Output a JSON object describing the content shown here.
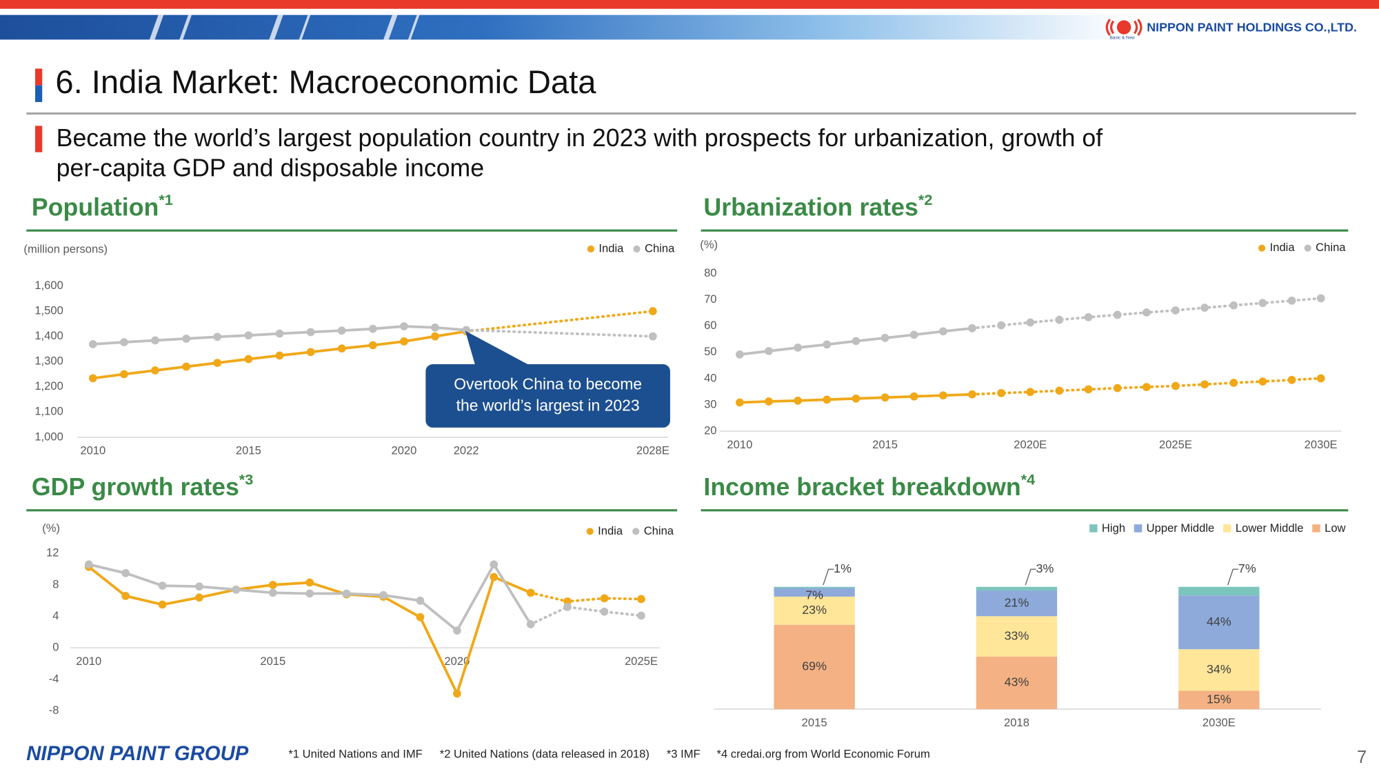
{
  "header": {
    "logo": "NIPPON PAINT HOLDINGS CO.,LTD.",
    "tagline": "Basic & New"
  },
  "title": "6. India Market: Macroeconomic Data",
  "subtitle": [
    "Became the world’s largest population country in 2023 with prospects for urbanization, growth of",
    "per-capita GDP and disposable income"
  ],
  "chart_data": [
    {
      "type": "line",
      "title": "Population",
      "note_ref": "*1",
      "unit": "(million persons)",
      "x": [
        2010,
        2011,
        2012,
        2013,
        2014,
        2015,
        2016,
        2017,
        2018,
        2019,
        2020,
        2021,
        2022,
        2028
      ],
      "xlim": [
        2009.5,
        2028.5
      ],
      "xticks": [
        2010,
        2015,
        2020,
        2022,
        {
          "value": 2028,
          "label": "2028E"
        }
      ],
      "ylim": [
        1000,
        1600
      ],
      "yticks": [
        {
          "value": 1000,
          "label": "1,000"
        },
        {
          "value": 1100,
          "label": "1,100"
        },
        {
          "value": 1200,
          "label": "1,200"
        },
        {
          "value": 1300,
          "label": "1,300"
        },
        {
          "value": 1400,
          "label": "1,400"
        },
        {
          "value": 1500,
          "label": "1,500"
        },
        {
          "value": 1600,
          "label": "1,600"
        }
      ],
      "grid": false,
      "legend": "top-right",
      "dashed_after": 2022,
      "series": [
        {
          "name": "India",
          "color": "#f0a818",
          "values": [
            1234,
            1250,
            1265,
            1280,
            1295,
            1310,
            1324,
            1338,
            1352,
            1365,
            1380,
            1400,
            1420,
            1500
          ]
        },
        {
          "name": "China",
          "color": "#bfbfbf",
          "values": [
            1369,
            1377,
            1384,
            1391,
            1398,
            1404,
            1411,
            1417,
            1423,
            1430,
            1440,
            1435,
            1425,
            1400
          ]
        }
      ],
      "annotation": [
        "Overtook China to become",
        "the world’s largest in 2023"
      ]
    },
    {
      "type": "line",
      "title": "Urbanization rates",
      "note_ref": "*2",
      "unit": "(%)",
      "x": [
        2010,
        2011,
        2012,
        2013,
        2014,
        2015,
        2016,
        2017,
        2018,
        2019,
        2020,
        2021,
        2022,
        2023,
        2024,
        2025,
        2026,
        2027,
        2028,
        2029,
        2030
      ],
      "xlim": [
        2009.3,
        2030.7
      ],
      "xticks": [
        2010,
        2015,
        {
          "value": 2020,
          "label": "2020E"
        },
        {
          "value": 2025,
          "label": "2025E"
        },
        {
          "value": 2030,
          "label": "2030E"
        }
      ],
      "ylim": [
        20,
        80
      ],
      "yticks": [
        20,
        30,
        40,
        50,
        60,
        70,
        80
      ],
      "grid": false,
      "legend": "top-right",
      "dashed_after": 2018,
      "series": [
        {
          "name": "India",
          "color": "#f0a818",
          "values": [
            30.9,
            31.3,
            31.6,
            32.0,
            32.4,
            32.8,
            33.2,
            33.6,
            34.0,
            34.5,
            34.9,
            35.4,
            35.9,
            36.4,
            36.8,
            37.2,
            37.8,
            38.4,
            38.9,
            39.5,
            40.1
          ]
        },
        {
          "name": "China",
          "color": "#bfbfbf",
          "values": [
            49.2,
            50.5,
            51.8,
            53.0,
            54.3,
            55.5,
            56.7,
            58.0,
            59.2,
            60.3,
            61.4,
            62.4,
            63.4,
            64.3,
            65.2,
            66.0,
            67.0,
            67.9,
            68.8,
            69.7,
            70.6
          ]
        }
      ]
    },
    {
      "type": "line",
      "title": "GDP growth rates",
      "note_ref": "*3",
      "unit": "(%)",
      "x": [
        2010,
        2011,
        2012,
        2013,
        2014,
        2015,
        2016,
        2017,
        2018,
        2019,
        2020,
        2021,
        2022,
        2023,
        2024,
        2025
      ],
      "xlim": [
        2009.5,
        2025.5
      ],
      "xticks": [
        2010,
        2015,
        2020,
        {
          "value": 2025,
          "label": "2025E"
        }
      ],
      "ylim": [
        -8,
        12
      ],
      "yticks": [
        -8,
        -4,
        0,
        4,
        8,
        12
      ],
      "grid": false,
      "legend": "top-right",
      "dashed_after": 2022,
      "series": [
        {
          "name": "India",
          "color": "#f0a818",
          "values": [
            10.3,
            6.6,
            5.5,
            6.4,
            7.4,
            8.0,
            8.3,
            6.8,
            6.5,
            3.9,
            -5.8,
            9.0,
            7.0,
            5.9,
            6.3,
            6.2
          ]
        },
        {
          "name": "China",
          "color": "#bfbfbf",
          "values": [
            10.6,
            9.5,
            7.9,
            7.8,
            7.4,
            7.0,
            6.9,
            6.9,
            6.7,
            6.0,
            2.2,
            10.6,
            3.0,
            5.2,
            4.6,
            4.1
          ]
        }
      ]
    },
    {
      "type": "bar",
      "stacked": true,
      "title": "Income bracket breakdown",
      "note_ref": "*4",
      "categories": [
        "2015",
        "2018",
        "2030E"
      ],
      "ylim": [
        0,
        100
      ],
      "legend": "top-right",
      "series": [
        {
          "name": "High",
          "color": "#7cc5bc",
          "values": [
            1,
            3,
            7
          ],
          "value_labels": [
            "1%",
            "3%",
            "7%"
          ]
        },
        {
          "name": "Upper Middle",
          "color": "#8eaadb",
          "values": [
            7,
            21,
            44
          ],
          "value_labels": [
            "7%",
            "21%",
            "44%"
          ]
        },
        {
          "name": "Lower Middle",
          "color": "#ffe699",
          "values": [
            23,
            33,
            34
          ],
          "value_labels": [
            "23%",
            "33%",
            "34%"
          ]
        },
        {
          "name": "Low",
          "color": "#f4b183",
          "values": [
            69,
            43,
            15
          ],
          "value_labels": [
            "69%",
            "43%",
            "15%"
          ]
        }
      ]
    }
  ],
  "footer": {
    "brand": "NIPPON PAINT GROUP",
    "notes": [
      "*1 United Nations and IMF",
      "*2 United Nations (data released in 2018)",
      "*3 IMF",
      "*4 credai.org from World Economic Forum"
    ]
  },
  "page_number": "7"
}
